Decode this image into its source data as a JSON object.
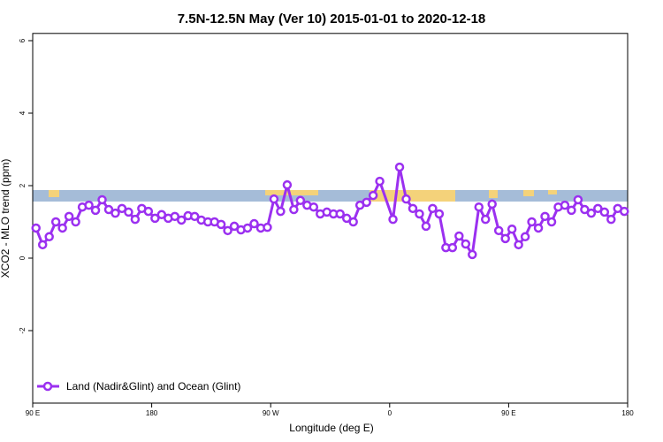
{
  "chart_data": {
    "type": "line",
    "title": "7.5N-12.5N May (Ver 10)   2015-01-01 to 2020-12-18",
    "xlabel": "Longitude (deg E)",
    "ylabel": "XCO2 - MLO trend (ppm)",
    "x": [
      92.5,
      97.5,
      102.5,
      107.5,
      112.5,
      117.5,
      122.5,
      127.5,
      132.5,
      137.5,
      142.5,
      147.5,
      152.5,
      157.5,
      162.5,
      167.5,
      172.5,
      177.5,
      182.5,
      187.5,
      192.5,
      197.5,
      202.5,
      207.5,
      212.5,
      217.5,
      222.5,
      227.5,
      232.5,
      237.5,
      242.5,
      247.5,
      252.5,
      257.5,
      262.5,
      267.5,
      272.5,
      277.5,
      282.5,
      287.5,
      292.5,
      297.5,
      302.5,
      307.5,
      312.5,
      317.5,
      322.5,
      327.5,
      332.5,
      337.5,
      342.5,
      347.5,
      352.5,
      362.5,
      367.5,
      372.5,
      377.5,
      382.5,
      387.5,
      392.5,
      397.5,
      402.5,
      407.5,
      412.5,
      417.5,
      422.5,
      427.5,
      432.5,
      437.5,
      442.5,
      447.5,
      452.5,
      457.5,
      462.5,
      467.5,
      472.5,
      477.5,
      482.5,
      487.5,
      492.5,
      497.5,
      502.5,
      507.5,
      512.5,
      517.5,
      522.5,
      527.5,
      532.5,
      537.5
    ],
    "series": [
      {
        "name": "Land (Nadir&Glint) and Ocean (Glint)",
        "color": "#9b30f0",
        "values": [
          0.83,
          0.37,
          0.59,
          1.0,
          0.83,
          1.15,
          1.0,
          1.41,
          1.46,
          1.32,
          1.61,
          1.34,
          1.24,
          1.37,
          1.27,
          1.07,
          1.37,
          1.29,
          1.1,
          1.2,
          1.1,
          1.15,
          1.05,
          1.17,
          1.15,
          1.05,
          1.0,
          1.0,
          0.93,
          0.76,
          0.88,
          0.78,
          0.83,
          0.95,
          0.83,
          0.85,
          1.63,
          1.29,
          2.02,
          1.34,
          1.59,
          1.46,
          1.41,
          1.22,
          1.27,
          1.22,
          1.22,
          1.1,
          1.0,
          1.46,
          1.54,
          1.73,
          2.12,
          1.07,
          2.51,
          1.63,
          1.37,
          1.22,
          0.88,
          1.37,
          1.22,
          0.29,
          0.29,
          0.61,
          0.39,
          0.1,
          1.41,
          1.07,
          1.49,
          0.76,
          0.54,
          0.8,
          0.37,
          0.59,
          1.0,
          0.83,
          1.15,
          1.0,
          1.41,
          1.46,
          1.32,
          1.61,
          1.34,
          1.24,
          1.37,
          1.27,
          1.07,
          1.37,
          1.29
        ]
      }
    ],
    "xlim": [
      90,
      540
    ],
    "xticks": [
      {
        "value": 90,
        "label": "90 E"
      },
      {
        "value": 180,
        "label": "180"
      },
      {
        "value": 270,
        "label": "90 W"
      },
      {
        "value": 360,
        "label": "0"
      },
      {
        "value": 450,
        "label": "90 E"
      },
      {
        "value": 540,
        "label": "180"
      }
    ],
    "ylim": [
      -4,
      6.2
    ],
    "yticks": [
      -2,
      0,
      2,
      4,
      6
    ],
    "legend": "bottom-left"
  }
}
